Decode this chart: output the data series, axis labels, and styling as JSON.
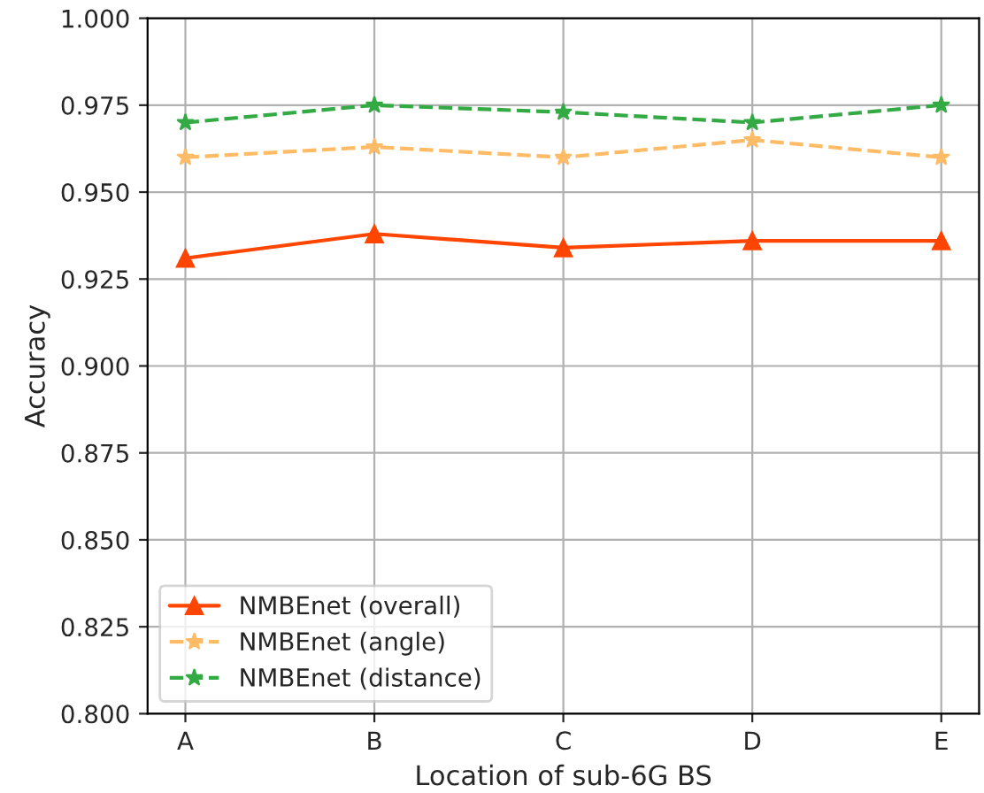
{
  "chart_data": {
    "type": "line",
    "xlabel": "Location of sub-6G BS",
    "ylabel": "Accuracy",
    "categories": [
      "A",
      "B",
      "C",
      "D",
      "E"
    ],
    "series": [
      {
        "name": "NMBEnet (overall)",
        "color": "#ff4500",
        "values": [
          0.931,
          0.938,
          0.934,
          0.936,
          0.936
        ],
        "marker": "triangle",
        "line_style": "solid"
      },
      {
        "name": "NMBEnet (angle)",
        "color": "#ffbb66",
        "values": [
          0.96,
          0.963,
          0.96,
          0.965,
          0.96
        ],
        "marker": "star",
        "line_style": "dashed"
      },
      {
        "name": "NMBEnet (distance)",
        "color": "#33aa44",
        "values": [
          0.97,
          0.975,
          0.973,
          0.97,
          0.975
        ],
        "marker": "star",
        "line_style": "dashed"
      }
    ],
    "ylim": [
      0.8,
      1.0
    ],
    "yticks": [
      {
        "value": 0.8,
        "label": "0.800"
      },
      {
        "value": 0.825,
        "label": "0.825"
      },
      {
        "value": 0.85,
        "label": "0.850"
      },
      {
        "value": 0.875,
        "label": "0.875"
      },
      {
        "value": 0.9,
        "label": "0.900"
      },
      {
        "value": 0.925,
        "label": "0.925"
      },
      {
        "value": 0.95,
        "label": "0.950"
      },
      {
        "value": 0.975,
        "label": "0.975"
      },
      {
        "value": 1.0,
        "label": "1.000"
      }
    ],
    "grid": true,
    "legend": "bottom left"
  }
}
